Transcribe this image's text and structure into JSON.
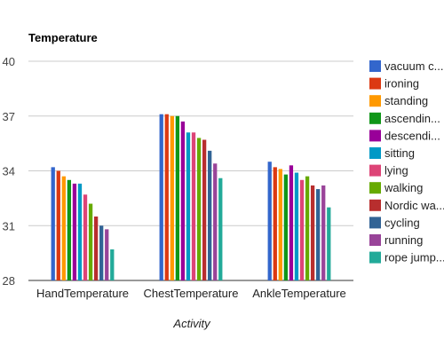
{
  "chart_data": {
    "type": "bar",
    "title": "Temperature",
    "xlabel": "Activity",
    "ylabel": "",
    "ylim": [
      28,
      40
    ],
    "yticks": [
      28,
      31,
      34,
      37,
      40
    ],
    "grid": true,
    "legend_position": "right",
    "categories": [
      "HandTemperature",
      "ChestTemperature",
      "AnkleTemperature"
    ],
    "series": [
      {
        "name": "vacuum c...",
        "color": "#3366cc",
        "values": [
          34.2,
          37.1,
          34.5
        ]
      },
      {
        "name": "ironing",
        "color": "#dc3912",
        "values": [
          34.0,
          37.1,
          34.2
        ]
      },
      {
        "name": "standing",
        "color": "#ff9900",
        "values": [
          33.7,
          37.0,
          34.1
        ]
      },
      {
        "name": "ascendin...",
        "color": "#109618",
        "values": [
          33.5,
          37.0,
          33.8
        ]
      },
      {
        "name": "descendi...",
        "color": "#990099",
        "values": [
          33.3,
          36.7,
          34.3
        ]
      },
      {
        "name": "sitting",
        "color": "#0099c6",
        "values": [
          33.3,
          36.1,
          33.9
        ]
      },
      {
        "name": "lying",
        "color": "#dd4477",
        "values": [
          32.7,
          36.1,
          33.5
        ]
      },
      {
        "name": "walking",
        "color": "#66aa00",
        "values": [
          32.2,
          35.8,
          33.7
        ]
      },
      {
        "name": "Nordic wa...",
        "color": "#b82e2e",
        "values": [
          31.5,
          35.7,
          33.2
        ]
      },
      {
        "name": "cycling",
        "color": "#316395",
        "values": [
          31.0,
          35.1,
          33.0
        ]
      },
      {
        "name": "running",
        "color": "#994499",
        "values": [
          30.8,
          34.4,
          33.2
        ]
      },
      {
        "name": "rope jump...",
        "color": "#22aa99",
        "values": [
          29.7,
          33.6,
          32.0
        ]
      }
    ]
  }
}
